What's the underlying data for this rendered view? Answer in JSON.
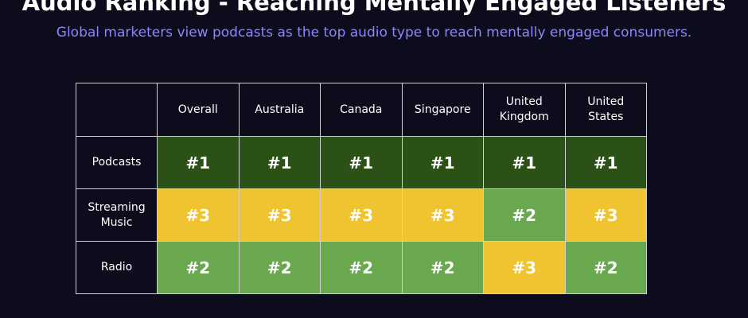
{
  "header": {
    "title": "Audio Ranking - Reaching Mentally Engaged Listeners",
    "subtitle": "Global marketers view podcasts as the top audio type to reach mentally engaged consumers."
  },
  "colors": {
    "background": "#0c0c1d",
    "subtitle": "#8f84ff",
    "rank_1": "#2c5116",
    "rank_2": "#69a84f",
    "rank_3": "#f0c330",
    "grid": "#cfcfd6"
  },
  "chart_data": {
    "type": "table",
    "columns": [
      "Overall",
      "Australia",
      "Canada",
      "Singapore",
      "United\nKingdom",
      "United\nStates"
    ],
    "rows": [
      {
        "label": "Podcasts",
        "values": [
          "#1",
          "#1",
          "#1",
          "#1",
          "#1",
          "#1"
        ]
      },
      {
        "label": "Streaming\nMusic",
        "values": [
          "#3",
          "#3",
          "#3",
          "#3",
          "#2",
          "#3"
        ]
      },
      {
        "label": "Radio",
        "values": [
          "#2",
          "#2",
          "#2",
          "#2",
          "#3",
          "#2"
        ]
      }
    ]
  }
}
